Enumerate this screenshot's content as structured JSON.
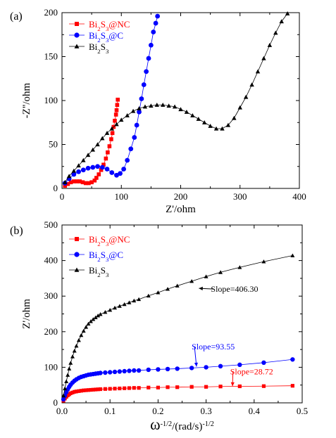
{
  "chart_data": [
    {
      "panel_label": "(a)",
      "type": "scatter",
      "xlabel": "Z'/ohm",
      "ylabel": "-Z''/ohm",
      "xlim": [
        0,
        400
      ],
      "ylim": [
        0,
        200
      ],
      "xticks": [
        "0",
        "100",
        "200",
        "300",
        "400"
      ],
      "yticks": [
        "0",
        "50",
        "100",
        "150",
        "200"
      ],
      "legend_position": "top-left",
      "series": [
        {
          "name": "Bi2S3@NC",
          "legend_parts": [
            [
              "Bi",
              ""
            ],
            [
              "2",
              "sub"
            ],
            [
              "S",
              ""
            ],
            [
              "3",
              "sub"
            ],
            [
              "@NC",
              ""
            ]
          ],
          "color": "#ff0000",
          "marker": "square",
          "x": [
            5,
            10,
            15,
            20,
            25,
            30,
            35,
            40,
            45,
            50,
            55,
            58,
            62,
            66,
            70,
            74,
            77,
            80,
            83,
            85,
            87,
            89,
            91,
            92,
            93,
            94
          ],
          "y": [
            3,
            5,
            7,
            8,
            8,
            8,
            7,
            6,
            6,
            7,
            9,
            12,
            16,
            21,
            27,
            34,
            41,
            48,
            56,
            63,
            70,
            77,
            84,
            89,
            95,
            101
          ]
        },
        {
          "name": "Bi2S3@C",
          "legend_parts": [
            [
              "Bi",
              ""
            ],
            [
              "2",
              "sub"
            ],
            [
              "S",
              ""
            ],
            [
              "3",
              "sub"
            ],
            [
              "@C",
              ""
            ]
          ],
          "color": "#0000ff",
          "marker": "circle",
          "x": [
            5,
            12,
            20,
            28,
            36,
            44,
            52,
            60,
            68,
            76,
            84,
            92,
            98,
            104,
            110,
            116,
            122,
            126,
            130,
            134,
            138,
            142,
            146,
            150,
            154,
            158,
            161
          ],
          "y": [
            6,
            11,
            16,
            19,
            21,
            23,
            24,
            25,
            24,
            22,
            18,
            15,
            17,
            22,
            32,
            45,
            58,
            72,
            87,
            102,
            118,
            133,
            148,
            163,
            178,
            188,
            196
          ]
        },
        {
          "name": "Bi2S3",
          "legend_parts": [
            [
              "Bi",
              ""
            ],
            [
              "2",
              "sub"
            ],
            [
              "S",
              ""
            ],
            [
              "3",
              "sub"
            ]
          ],
          "color": "#000000",
          "marker": "triangle",
          "x": [
            5,
            12,
            20,
            28,
            36,
            44,
            52,
            60,
            68,
            76,
            84,
            92,
            100,
            110,
            120,
            130,
            140,
            150,
            160,
            170,
            180,
            190,
            200,
            210,
            220,
            230,
            240,
            250,
            260,
            270,
            280,
            290,
            300,
            310,
            320,
            330,
            340,
            350,
            360,
            370,
            380
          ],
          "y": [
            7,
            14,
            20,
            26,
            32,
            38,
            44,
            50,
            57,
            63,
            68,
            73,
            78,
            83,
            88,
            91,
            93,
            94,
            95,
            95,
            94,
            93,
            90,
            87,
            83,
            79,
            75,
            71,
            68,
            68,
            72,
            80,
            92,
            104,
            118,
            133,
            148,
            163,
            177,
            190,
            199
          ]
        }
      ]
    },
    {
      "panel_label": "(b)",
      "type": "scatter",
      "xlabel_symbol": "ω",
      "xlabel_parts": [
        [
          "-1/2",
          "sup"
        ],
        [
          "/(rad/s)",
          ""
        ],
        [
          "-1/2",
          "sup"
        ]
      ],
      "ylabel": "Z'/ohm",
      "xlim": [
        0,
        0.5
      ],
      "ylim": [
        0,
        500
      ],
      "xticks": [
        "0.0",
        "0.1",
        "0.2",
        "0.3",
        "0.4",
        "0.5"
      ],
      "yticks": [
        "0",
        "100",
        "200",
        "300",
        "400",
        "500"
      ],
      "legend_position": "top-left",
      "series": [
        {
          "name": "Bi2S3@NC",
          "legend_parts": [
            [
              "Bi",
              ""
            ],
            [
              "2",
              "sub"
            ],
            [
              "S",
              ""
            ],
            [
              "3",
              "sub"
            ],
            [
              "@NC",
              ""
            ]
          ],
          "color": "#ff0000",
          "marker": "square",
          "x": [
            0.003,
            0.006,
            0.009,
            0.012,
            0.015,
            0.018,
            0.022,
            0.026,
            0.03,
            0.035,
            0.04,
            0.045,
            0.05,
            0.055,
            0.06,
            0.065,
            0.07,
            0.075,
            0.08,
            0.09,
            0.1,
            0.11,
            0.12,
            0.13,
            0.14,
            0.15,
            0.16,
            0.18,
            0.2,
            0.22,
            0.24,
            0.27,
            0.3,
            0.33,
            0.37,
            0.42,
            0.48
          ],
          "y": [
            6,
            12,
            17,
            21,
            24,
            27,
            29,
            31,
            32,
            33,
            34,
            35,
            35.5,
            36,
            36.5,
            37,
            37.5,
            38,
            38.5,
            39,
            39.5,
            40,
            40.5,
            41,
            41.5,
            42,
            42,
            43,
            43,
            44,
            44,
            45,
            45,
            46,
            46.5,
            47,
            48
          ]
        },
        {
          "name": "Bi2S3@C",
          "legend_parts": [
            [
              "Bi",
              ""
            ],
            [
              "2",
              "sub"
            ],
            [
              "S",
              ""
            ],
            [
              "3",
              "sub"
            ],
            [
              "@C",
              ""
            ]
          ],
          "color": "#0000ff",
          "marker": "circle",
          "x": [
            0.003,
            0.006,
            0.009,
            0.012,
            0.015,
            0.018,
            0.022,
            0.026,
            0.03,
            0.035,
            0.04,
            0.045,
            0.05,
            0.055,
            0.06,
            0.065,
            0.07,
            0.075,
            0.08,
            0.09,
            0.1,
            0.11,
            0.12,
            0.13,
            0.14,
            0.15,
            0.16,
            0.18,
            0.2,
            0.22,
            0.24,
            0.27,
            0.3,
            0.33,
            0.37,
            0.42,
            0.48
          ],
          "y": [
            10,
            20,
            30,
            38,
            45,
            51,
            57,
            62,
            66,
            70,
            73,
            75,
            77,
            79,
            80,
            81,
            82,
            83,
            84,
            85,
            86,
            87,
            88,
            89,
            90,
            91,
            91,
            93,
            94,
            95,
            96,
            98,
            100,
            103,
            107,
            113,
            122
          ]
        },
        {
          "name": "Bi2S3",
          "legend_parts": [
            [
              "Bi",
              ""
            ],
            [
              "2",
              "sub"
            ],
            [
              "S",
              ""
            ],
            [
              "3",
              "sub"
            ]
          ],
          "color": "#000000",
          "marker": "triangle",
          "x": [
            0.003,
            0.006,
            0.009,
            0.012,
            0.015,
            0.018,
            0.022,
            0.026,
            0.03,
            0.035,
            0.04,
            0.045,
            0.05,
            0.055,
            0.06,
            0.065,
            0.07,
            0.075,
            0.08,
            0.09,
            0.1,
            0.11,
            0.12,
            0.13,
            0.14,
            0.15,
            0.16,
            0.18,
            0.2,
            0.22,
            0.24,
            0.27,
            0.3,
            0.33,
            0.37,
            0.42,
            0.48
          ],
          "y": [
            20,
            40,
            60,
            78,
            96,
            112,
            130,
            146,
            160,
            176,
            190,
            202,
            213,
            222,
            229,
            235,
            240,
            245,
            249,
            255,
            261,
            267,
            272,
            277,
            282,
            287,
            291,
            301,
            310,
            320,
            329,
            342,
            355,
            367,
            381,
            397,
            414
          ]
        }
      ],
      "annotations": [
        {
          "text": "Slope=406.30",
          "color": "#000000",
          "arrow_to": [
            0.285,
            322
          ],
          "text_at": [
            0.31,
            312
          ]
        },
        {
          "text": "Slope=93.55",
          "color": "#0000ff",
          "arrow_to": [
            0.28,
            102
          ],
          "text_at": [
            0.27,
            150
          ]
        },
        {
          "text": "Slope=28.72",
          "color": "#ff0000",
          "arrow_to": [
            0.355,
            47
          ],
          "text_at": [
            0.35,
            80
          ]
        }
      ]
    }
  ]
}
